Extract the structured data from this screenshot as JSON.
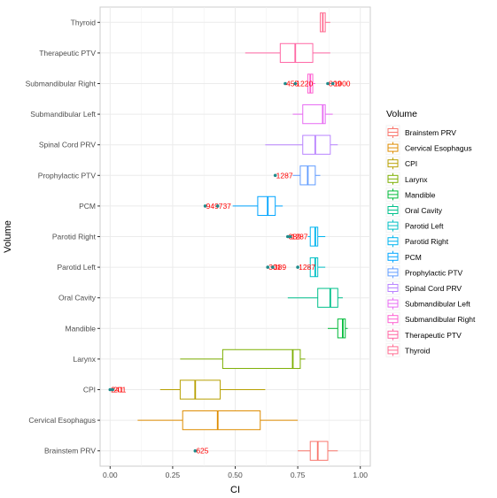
{
  "chart_data": {
    "type": "boxplot",
    "orientation": "horizontal",
    "xlabel": "CI",
    "ylabel": "Volume",
    "xlim": [
      -0.04,
      1.04
    ],
    "xticks": [
      0.0,
      0.25,
      0.5,
      0.75,
      1.0
    ],
    "xtick_labels": [
      "0.00",
      "0.25",
      "0.50",
      "0.75",
      "1.00"
    ],
    "grid": true,
    "legend": {
      "title": "Volume",
      "position": "right"
    },
    "series": [
      {
        "name": "Brainstem PRV",
        "color": "#F8766D",
        "min": 0.75,
        "q1": 0.8,
        "median": 0.83,
        "q3": 0.87,
        "max": 0.91,
        "outliers": [
          {
            "x": 0.34,
            "label": "625"
          }
        ]
      },
      {
        "name": "Cervical Esophagus",
        "color": "#DE8C00",
        "min": 0.11,
        "q1": 0.29,
        "median": 0.43,
        "q3": 0.6,
        "max": 0.75,
        "outliers": []
      },
      {
        "name": "CPI",
        "color": "#B79F00",
        "min": 0.2,
        "q1": 0.28,
        "median": 0.34,
        "q3": 0.44,
        "max": 0.62,
        "outliers": [
          {
            "x": 0.0,
            "label": "241"
          },
          {
            "x": 0.01,
            "label": "201"
          }
        ]
      },
      {
        "name": "Larynx",
        "color": "#7CAE00",
        "min": 0.28,
        "q1": 0.45,
        "median": 0.73,
        "q3": 0.76,
        "max": 0.78,
        "outliers": []
      },
      {
        "name": "Mandible",
        "color": "#00BA38",
        "min": 0.87,
        "q1": 0.91,
        "median": 0.93,
        "q3": 0.94,
        "max": 0.95,
        "outliers": []
      },
      {
        "name": "Oral Cavity",
        "color": "#00C08B",
        "min": 0.71,
        "q1": 0.83,
        "median": 0.88,
        "q3": 0.91,
        "max": 0.93,
        "outliers": []
      },
      {
        "name": "Parotid Left",
        "color": "#00BFC4",
        "min": 0.79,
        "q1": 0.8,
        "median": 0.82,
        "q3": 0.83,
        "max": 0.86,
        "outliers": [
          {
            "x": 0.63,
            "label": "301"
          },
          {
            "x": 0.65,
            "label": "389"
          },
          {
            "x": 0.75,
            "label": "1287"
          }
        ]
      },
      {
        "name": "Parotid Right",
        "color": "#00B4EF",
        "min": 0.79,
        "q1": 0.8,
        "median": 0.82,
        "q3": 0.83,
        "max": 0.86,
        "outliers": [
          {
            "x": 0.71,
            "label": "389"
          },
          {
            "x": 0.72,
            "label": "1287"
          }
        ]
      },
      {
        "name": "PCM",
        "color": "#00A5FF",
        "min": 0.49,
        "q1": 0.59,
        "median": 0.63,
        "q3": 0.66,
        "max": 0.69,
        "outliers": [
          {
            "x": 0.38,
            "label": "949"
          },
          {
            "x": 0.43,
            "label": "737"
          }
        ]
      },
      {
        "name": "Prophylactic PTV",
        "color": "#619CFF",
        "min": 0.73,
        "q1": 0.76,
        "median": 0.79,
        "q3": 0.82,
        "max": 0.84,
        "outliers": [
          {
            "x": 0.66,
            "label": "1287"
          }
        ]
      },
      {
        "name": "Spinal Cord PRV",
        "color": "#B983FF",
        "min": 0.62,
        "q1": 0.77,
        "median": 0.82,
        "q3": 0.88,
        "max": 0.91,
        "outliers": []
      },
      {
        "name": "Submandibular Left",
        "color": "#E76BF3",
        "min": 0.73,
        "q1": 0.77,
        "median": 0.85,
        "q3": 0.86,
        "max": 0.89,
        "outliers": []
      },
      {
        "name": "Submandibular Right",
        "color": "#FD61D1",
        "min": 0.79,
        "q1": 0.79,
        "median": 0.8,
        "q3": 0.81,
        "max": 0.82,
        "outliers": [
          {
            "x": 0.7,
            "label": "455"
          },
          {
            "x": 0.74,
            "label": "1220"
          },
          {
            "x": 0.87,
            "label": "809"
          },
          {
            "x": 0.89,
            "label": "1000"
          }
        ]
      },
      {
        "name": "Therapeutic PTV",
        "color": "#FF67A4",
        "min": 0.54,
        "q1": 0.68,
        "median": 0.74,
        "q3": 0.81,
        "max": 0.88,
        "outliers": []
      },
      {
        "name": "Thyroid",
        "color": "#FF6C91",
        "min": 0.84,
        "q1": 0.84,
        "median": 0.85,
        "q3": 0.86,
        "max": 0.88,
        "outliers": []
      }
    ],
    "outlier_point_color": "#1f8a8a",
    "outlier_label_color": "#ff0000"
  }
}
